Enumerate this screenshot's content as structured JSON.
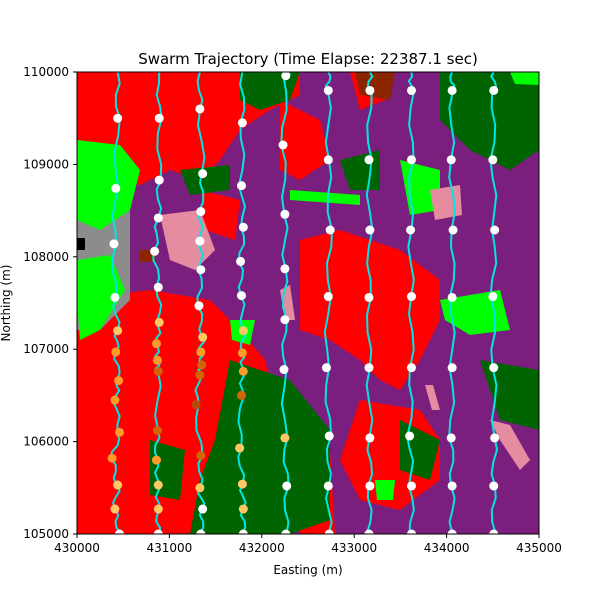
{
  "chart_data": {
    "type": "scatter",
    "title": "Swarm Trajectory (Time Elapse: 22387.1 sec)",
    "xlabel": "Easting (m)",
    "ylabel": "Northing (m)",
    "xlim": [
      430000,
      435000
    ],
    "ylim": [
      105000,
      110000
    ],
    "xticks": [
      "430000",
      "431000",
      "432000",
      "433000",
      "434000",
      "435000"
    ],
    "yticks": [
      "105000",
      "106000",
      "107000",
      "108000",
      "109000",
      "110000"
    ],
    "grid": false,
    "background_map_colors": [
      "#ff0000",
      "#7b1f7e",
      "#006400",
      "#00ff00",
      "#e68ca0",
      "#8c8c8c",
      "#8b2500",
      "#000000"
    ],
    "trajectory_color": "#00e5e5",
    "point_colors": {
      "white": "#ffffff",
      "light_orange": "#ffc864",
      "orange": "#ff9b28",
      "dark_orange": "#d2640a",
      "brown": "#b44b0a"
    },
    "tracks": [
      {
        "points": [
          {
            "x": 430440,
            "y": 109500,
            "c": "white"
          },
          {
            "x": 430420,
            "y": 108740,
            "c": "white"
          },
          {
            "x": 430400,
            "y": 108140,
            "c": "white"
          },
          {
            "x": 430410,
            "y": 107560,
            "c": "white"
          },
          {
            "x": 430440,
            "y": 107200,
            "c": "light_orange"
          },
          {
            "x": 430420,
            "y": 106970,
            "c": "orange"
          },
          {
            "x": 430450,
            "y": 106660,
            "c": "orange"
          },
          {
            "x": 430410,
            "y": 106450,
            "c": "orange"
          },
          {
            "x": 430460,
            "y": 106100,
            "c": "orange"
          },
          {
            "x": 430380,
            "y": 105820,
            "c": "orange"
          },
          {
            "x": 430440,
            "y": 105530,
            "c": "light_orange"
          },
          {
            "x": 430410,
            "y": 105270,
            "c": "light_orange"
          },
          {
            "x": 430460,
            "y": 105000,
            "c": "white"
          }
        ]
      },
      {
        "points": [
          {
            "x": 430890,
            "y": 109500,
            "c": "white"
          },
          {
            "x": 430890,
            "y": 108830,
            "c": "white"
          },
          {
            "x": 430880,
            "y": 108420,
            "c": "white"
          },
          {
            "x": 430840,
            "y": 108060,
            "c": "white"
          },
          {
            "x": 430880,
            "y": 107670,
            "c": "white"
          },
          {
            "x": 430890,
            "y": 107290,
            "c": "light_orange"
          },
          {
            "x": 430860,
            "y": 107060,
            "c": "orange"
          },
          {
            "x": 430870,
            "y": 106880,
            "c": "orange"
          },
          {
            "x": 430880,
            "y": 106760,
            "c": "dark_orange"
          },
          {
            "x": 430870,
            "y": 106120,
            "c": "dark_orange"
          },
          {
            "x": 430860,
            "y": 105800,
            "c": "orange"
          },
          {
            "x": 430880,
            "y": 105530,
            "c": "light_orange"
          },
          {
            "x": 430880,
            "y": 105270,
            "c": "light_orange"
          },
          {
            "x": 430880,
            "y": 105000,
            "c": "white"
          }
        ]
      },
      {
        "points": [
          {
            "x": 431330,
            "y": 109600,
            "c": "white"
          },
          {
            "x": 431360,
            "y": 108900,
            "c": "white"
          },
          {
            "x": 431340,
            "y": 108490,
            "c": "white"
          },
          {
            "x": 431330,
            "y": 108170,
            "c": "white"
          },
          {
            "x": 431340,
            "y": 107860,
            "c": "white"
          },
          {
            "x": 431320,
            "y": 107470,
            "c": "white"
          },
          {
            "x": 431360,
            "y": 107130,
            "c": "light_orange"
          },
          {
            "x": 431340,
            "y": 106970,
            "c": "orange"
          },
          {
            "x": 431350,
            "y": 106830,
            "c": "dark_orange"
          },
          {
            "x": 431330,
            "y": 106720,
            "c": "dark_orange"
          },
          {
            "x": 431290,
            "y": 106400,
            "c": "brown"
          },
          {
            "x": 431340,
            "y": 105850,
            "c": "dark_orange"
          },
          {
            "x": 431330,
            "y": 105500,
            "c": "light_orange"
          },
          {
            "x": 431360,
            "y": 105270,
            "c": "white"
          },
          {
            "x": 431340,
            "y": 105000,
            "c": "white"
          }
        ]
      },
      {
        "points": [
          {
            "x": 431790,
            "y": 109450,
            "c": "white"
          },
          {
            "x": 431780,
            "y": 108770,
            "c": "white"
          },
          {
            "x": 431800,
            "y": 108320,
            "c": "white"
          },
          {
            "x": 431770,
            "y": 107950,
            "c": "white"
          },
          {
            "x": 431780,
            "y": 107580,
            "c": "white"
          },
          {
            "x": 431800,
            "y": 107200,
            "c": "light_orange"
          },
          {
            "x": 431790,
            "y": 106960,
            "c": "orange"
          },
          {
            "x": 431800,
            "y": 106760,
            "c": "orange"
          },
          {
            "x": 431780,
            "y": 106500,
            "c": "dark_orange"
          },
          {
            "x": 431760,
            "y": 105930,
            "c": "light_orange"
          },
          {
            "x": 431790,
            "y": 105540,
            "c": "light_orange"
          },
          {
            "x": 431800,
            "y": 105270,
            "c": "light_orange"
          },
          {
            "x": 431800,
            "y": 105000,
            "c": "white"
          }
        ]
      },
      {
        "points": [
          {
            "x": 432260,
            "y": 109960,
            "c": "white"
          },
          {
            "x": 432230,
            "y": 109210,
            "c": "white"
          },
          {
            "x": 432250,
            "y": 108460,
            "c": "white"
          },
          {
            "x": 432250,
            "y": 107870,
            "c": "white"
          },
          {
            "x": 432250,
            "y": 107320,
            "c": "white"
          },
          {
            "x": 432240,
            "y": 106780,
            "c": "white"
          },
          {
            "x": 432250,
            "y": 106040,
            "c": "light_orange"
          },
          {
            "x": 432270,
            "y": 105520,
            "c": "white"
          },
          {
            "x": 432260,
            "y": 105000,
            "c": "white"
          }
        ]
      },
      {
        "points": [
          {
            "x": 432720,
            "y": 109800,
            "c": "white"
          },
          {
            "x": 432720,
            "y": 109050,
            "c": "white"
          },
          {
            "x": 432740,
            "y": 108290,
            "c": "white"
          },
          {
            "x": 432720,
            "y": 107570,
            "c": "white"
          },
          {
            "x": 432700,
            "y": 106800,
            "c": "white"
          },
          {
            "x": 432730,
            "y": 106060,
            "c": "white"
          },
          {
            "x": 432720,
            "y": 105520,
            "c": "white"
          },
          {
            "x": 432730,
            "y": 105000,
            "c": "white"
          }
        ]
      },
      {
        "points": [
          {
            "x": 433170,
            "y": 109800,
            "c": "white"
          },
          {
            "x": 433160,
            "y": 109050,
            "c": "white"
          },
          {
            "x": 433170,
            "y": 108290,
            "c": "white"
          },
          {
            "x": 433160,
            "y": 107560,
            "c": "white"
          },
          {
            "x": 433160,
            "y": 106800,
            "c": "white"
          },
          {
            "x": 433170,
            "y": 106040,
            "c": "white"
          },
          {
            "x": 433170,
            "y": 105520,
            "c": "white"
          },
          {
            "x": 433160,
            "y": 105000,
            "c": "white"
          }
        ]
      },
      {
        "points": [
          {
            "x": 433620,
            "y": 109800,
            "c": "white"
          },
          {
            "x": 433620,
            "y": 109050,
            "c": "white"
          },
          {
            "x": 433610,
            "y": 108290,
            "c": "white"
          },
          {
            "x": 433620,
            "y": 107570,
            "c": "white"
          },
          {
            "x": 433620,
            "y": 106800,
            "c": "white"
          },
          {
            "x": 433600,
            "y": 106060,
            "c": "white"
          },
          {
            "x": 433620,
            "y": 105520,
            "c": "white"
          },
          {
            "x": 433620,
            "y": 105000,
            "c": "white"
          }
        ]
      },
      {
        "points": [
          {
            "x": 434060,
            "y": 109800,
            "c": "white"
          },
          {
            "x": 434050,
            "y": 109050,
            "c": "white"
          },
          {
            "x": 434070,
            "y": 108290,
            "c": "white"
          },
          {
            "x": 434060,
            "y": 107560,
            "c": "white"
          },
          {
            "x": 434060,
            "y": 106800,
            "c": "white"
          },
          {
            "x": 434050,
            "y": 106040,
            "c": "white"
          },
          {
            "x": 434060,
            "y": 105520,
            "c": "white"
          },
          {
            "x": 434060,
            "y": 105000,
            "c": "white"
          }
        ]
      },
      {
        "points": [
          {
            "x": 434510,
            "y": 109800,
            "c": "white"
          },
          {
            "x": 434500,
            "y": 109050,
            "c": "white"
          },
          {
            "x": 434520,
            "y": 108290,
            "c": "white"
          },
          {
            "x": 434500,
            "y": 107570,
            "c": "white"
          },
          {
            "x": 434510,
            "y": 106800,
            "c": "white"
          },
          {
            "x": 434520,
            "y": 106040,
            "c": "white"
          },
          {
            "x": 434510,
            "y": 105520,
            "c": "white"
          },
          {
            "x": 434510,
            "y": 105000,
            "c": "white"
          }
        ]
      }
    ]
  }
}
